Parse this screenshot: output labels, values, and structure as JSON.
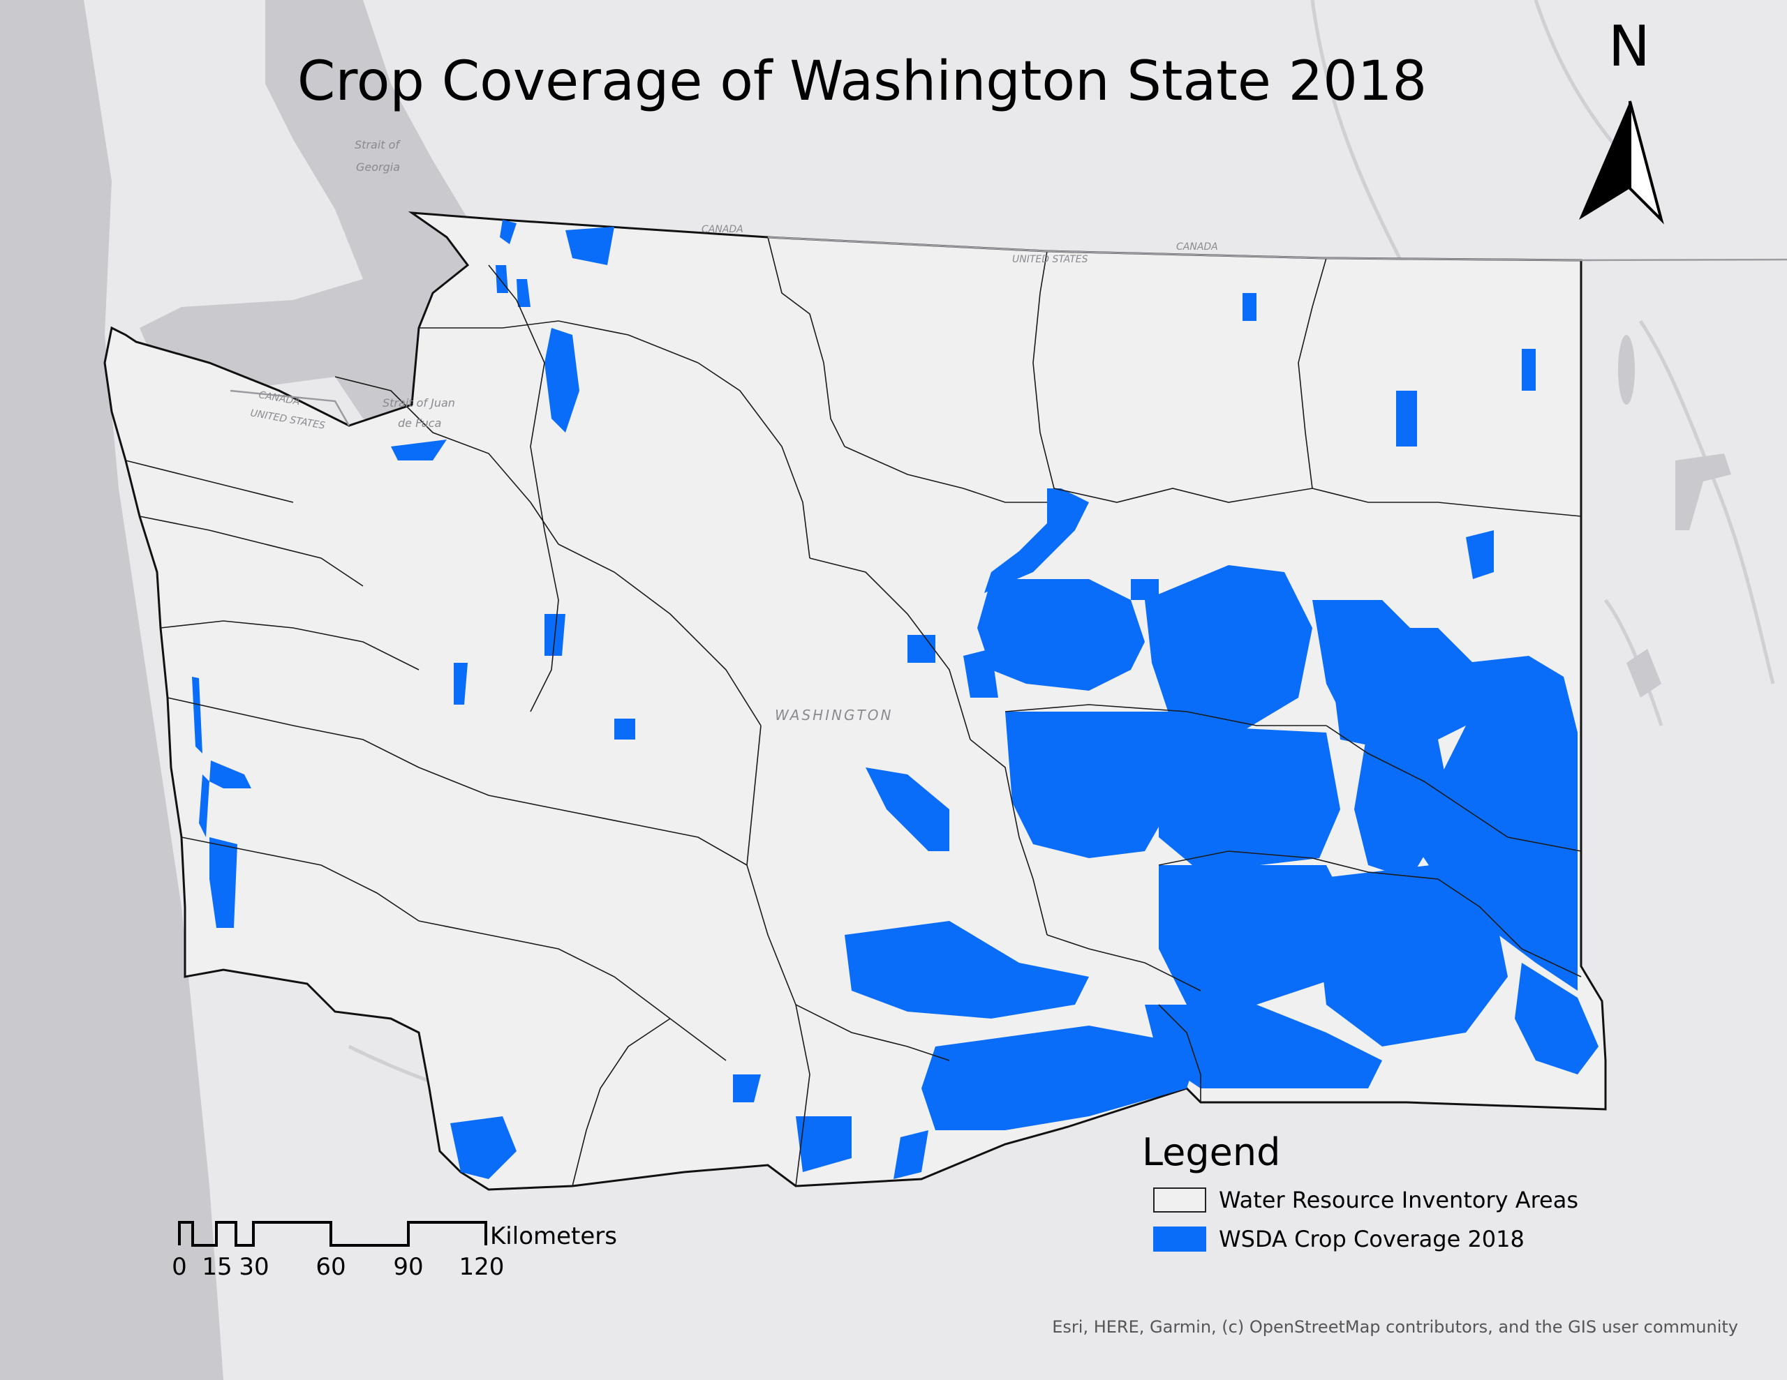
{
  "map": {
    "title": "Crop Coverage of Washington State 2018",
    "north_arrow_label": "N",
    "colors": {
      "background": "#e9e9ec",
      "land": "#f0f0f1",
      "water": "#c9c9ce",
      "crop_coverage": "#0a6dfa",
      "boundary": "#111111"
    },
    "basemap_labels": {
      "strait_of_georgia": [
        "Strait of",
        "Georgia"
      ],
      "strait_juan_de_fuca": [
        "Strait of Juan",
        "de Fuca"
      ],
      "canada_1": "CANADA",
      "canada_2": "CANADA",
      "canada_3": "CANADA",
      "united_states_1": "UNITED STATES",
      "united_states_2": "UNITED STATES",
      "washington": "WASHINGTON"
    }
  },
  "legend": {
    "title": "Legend",
    "items": [
      {
        "label": "Water Resource Inventory Areas",
        "symbol": "outline"
      },
      {
        "label": "WSDA Crop Coverage 2018",
        "symbol": "fill"
      }
    ]
  },
  "scale_bar": {
    "unit": "Kilometers",
    "ticks": [
      "0",
      "15",
      "30",
      "60",
      "90",
      "120"
    ]
  },
  "attribution": "Esri, HERE, Garmin, (c) OpenStreetMap contributors, and the GIS user community"
}
